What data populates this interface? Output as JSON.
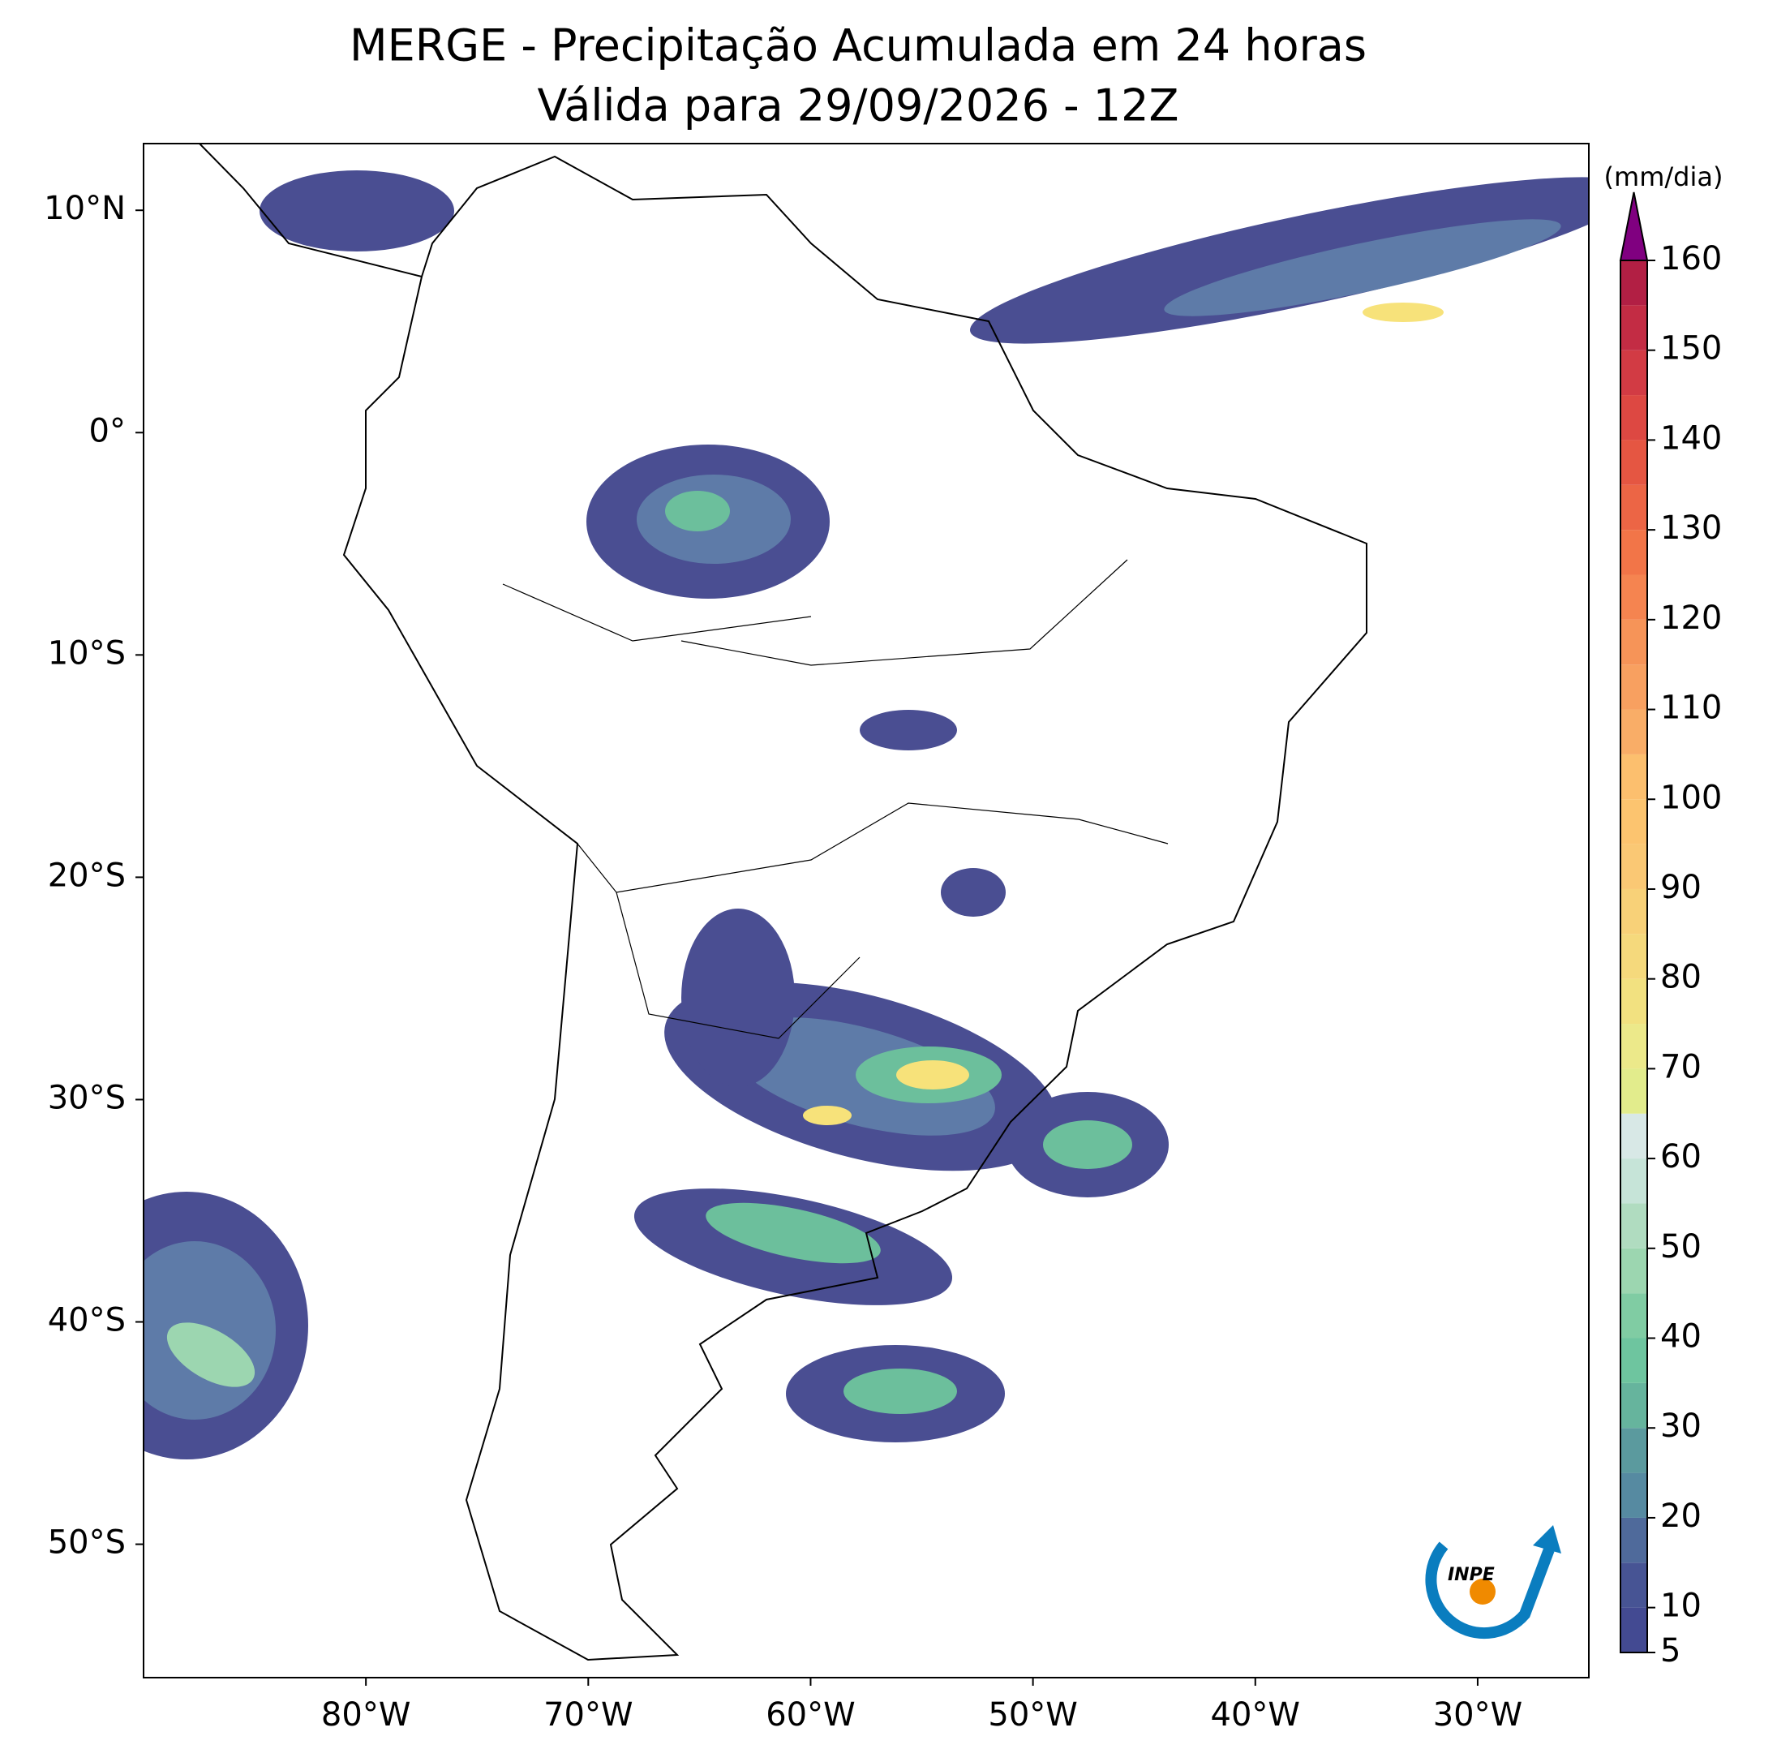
{
  "chart_data": {
    "type": "map",
    "title": "MERGE - Precipitação Acumulada em 24 horas",
    "subtitle": "Válida para 29/09/2026 - 12Z",
    "xlim": [
      -90,
      -25
    ],
    "ylim": [
      -56,
      13
    ],
    "xticks": [
      {
        "value": -80,
        "label": "80°W"
      },
      {
        "value": -70,
        "label": "70°W"
      },
      {
        "value": -60,
        "label": "60°W"
      },
      {
        "value": -50,
        "label": "50°W"
      },
      {
        "value": -40,
        "label": "40°W"
      },
      {
        "value": -30,
        "label": "30°W"
      }
    ],
    "yticks": [
      {
        "value": 10,
        "label": "10°N"
      },
      {
        "value": 0,
        "label": "0°"
      },
      {
        "value": -10,
        "label": "10°S"
      },
      {
        "value": -20,
        "label": "20°S"
      },
      {
        "value": -30,
        "label": "30°S"
      },
      {
        "value": -40,
        "label": "40°S"
      },
      {
        "value": -50,
        "label": "50°S"
      }
    ],
    "colorbar_label": "(mm/dia)",
    "clim": [
      5,
      160
    ],
    "cticks": [
      5,
      10,
      20,
      30,
      40,
      50,
      60,
      70,
      80,
      90,
      100,
      110,
      120,
      130,
      140,
      150,
      160
    ],
    "levels": [
      5,
      10,
      15,
      20,
      25,
      30,
      35,
      40,
      45,
      50,
      55,
      60,
      65,
      70,
      75,
      80,
      85,
      90,
      95,
      100,
      105,
      110,
      115,
      120,
      125,
      130,
      135,
      140,
      145,
      150,
      155,
      160
    ],
    "colors": [
      "#434a92",
      "#475494",
      "#4f6a9b",
      "#568aa1",
      "#5b9a9e",
      "#66b49d",
      "#6ec59f",
      "#80cca3",
      "#9cd6b0",
      "#b0dcc0",
      "#c6e4d8",
      "#d8e8e6",
      "#e2ec8c",
      "#ece98a",
      "#f2e180",
      "#f5d97c",
      "#f8d178",
      "#fac874",
      "#fcc46f",
      "#fcbf6e",
      "#f9ad67",
      "#f8a060",
      "#f69458",
      "#f58450",
      "#f27548",
      "#ec6545",
      "#e55642",
      "#dd4842",
      "#d23b44",
      "#c32c44",
      "#b21f44"
    ],
    "extend_color": "#800080",
    "logo_text": "INPE"
  }
}
